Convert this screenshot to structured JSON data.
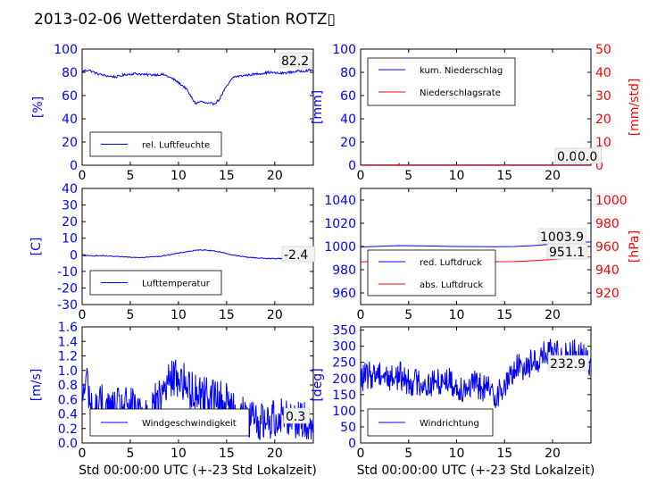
{
  "title": "2013-02-06 Wetterdaten Station ROTZ▯",
  "colors": {
    "left": "#0000ff",
    "right": "#ff0000",
    "light": "#8080ff",
    "frame": "#000000"
  },
  "chart_data": [
    {
      "id": "humidity",
      "type": "line",
      "ylabel": "[%]",
      "ylim": [
        0,
        100
      ],
      "yticks": [
        0,
        20,
        40,
        60,
        80,
        100
      ],
      "xlim": [
        0,
        24
      ],
      "xticks": [
        0,
        5,
        10,
        15,
        20
      ],
      "series": [
        {
          "name": "rel. Luftfeuchte",
          "color": "#0000ff",
          "noise": 1.0,
          "x": [
            0,
            0.7,
            1.5,
            2.5,
            3.5,
            4.5,
            5.5,
            6.5,
            7.5,
            8.5,
            9.5,
            10.2,
            10.8,
            11.3,
            11.8,
            12.3,
            13,
            13.7,
            14.2,
            14.7,
            15.2,
            15.7,
            16.5,
            17.5,
            18.5,
            19.5,
            20.5,
            21.5,
            22.5,
            24
          ],
          "y": [
            81,
            82,
            79,
            77,
            76,
            78,
            79,
            78,
            78,
            78,
            74,
            70,
            66,
            59,
            53,
            55,
            53,
            53,
            56,
            64,
            70,
            76,
            77,
            78,
            79,
            80,
            79,
            80,
            81,
            82
          ]
        }
      ],
      "annotation": "82.2"
    },
    {
      "id": "precip",
      "type": "line",
      "ylabel": "[mm]",
      "ylim": [
        0,
        100
      ],
      "yticks": [
        0,
        20,
        40,
        60,
        80,
        100
      ],
      "ylabel_right": "[mm/std]",
      "ylim_right": [
        0,
        50
      ],
      "yticks_right": [
        0,
        10,
        20,
        30,
        40,
        50
      ],
      "xlim": [
        0,
        24
      ],
      "xticks": [
        0,
        5,
        10,
        15,
        20
      ],
      "series": [
        {
          "name": "kum. Niederschlag",
          "color": "#0000ff",
          "axis": "left",
          "x": [
            0,
            24
          ],
          "y": [
            0.2,
            0.2
          ]
        },
        {
          "name": "Niederschlagsrate",
          "color": "#ff0000",
          "axis": "right",
          "x": [
            0,
            3.95,
            4.0,
            4.05,
            24
          ],
          "y": [
            0.1,
            0.1,
            0.7,
            0.1,
            0.1
          ]
        }
      ],
      "annotation": "0.0",
      "annotation_right": "0.0"
    },
    {
      "id": "temperature",
      "type": "line",
      "ylabel": "[C]",
      "ylim": [
        -30,
        40
      ],
      "yticks": [
        -30,
        -20,
        -10,
        0,
        10,
        20,
        30,
        40
      ],
      "xlim": [
        0,
        24
      ],
      "xticks": [
        0,
        5,
        10,
        15,
        20
      ],
      "series": [
        {
          "name": "Lufttemperatur",
          "color": "#0000ff",
          "noise": 0.25,
          "x": [
            0,
            2,
            4,
            6,
            8,
            9,
            10,
            11,
            12,
            12.5,
            13.5,
            14.5,
            15.5,
            16.5,
            17.5,
            18.5,
            19.5,
            20.5,
            21.5,
            22.5,
            24
          ],
          "y": [
            -0.5,
            -0.6,
            -1.2,
            -1.6,
            -1.0,
            0.0,
            1.0,
            2.0,
            2.8,
            3.0,
            2.5,
            1.5,
            0.0,
            -1.0,
            -1.6,
            -2.0,
            -2.3,
            -2.2,
            -2.3,
            -2.4,
            -2.4
          ]
        }
      ],
      "annotation": "-2.4"
    },
    {
      "id": "pressure",
      "type": "line",
      "ylim": [
        950,
        1050
      ],
      "yticks": [
        960,
        980,
        1000,
        1020,
        1040
      ],
      "ylabel_right": "[hPa]",
      "ylim_right": [
        910,
        1010
      ],
      "yticks_right": [
        920,
        940,
        960,
        980,
        1000
      ],
      "xlim": [
        0,
        24
      ],
      "xticks": [
        0,
        5,
        10,
        15,
        20
      ],
      "series": [
        {
          "name": "red. Luftdruck",
          "color": "#0000ff",
          "axis": "left",
          "x": [
            0,
            2,
            4,
            6,
            8,
            10,
            12,
            14,
            16,
            18,
            20,
            22,
            24
          ],
          "y": [
            999.5,
            1000.2,
            1000.8,
            1000.6,
            1000.3,
            1000.0,
            999.9,
            999.8,
            1000.0,
            1000.8,
            1002.0,
            1003.2,
            1003.9
          ]
        },
        {
          "name": "abs. Luftdruck",
          "color": "#ff0000",
          "axis": "right",
          "x": [
            0,
            2,
            4,
            6,
            8,
            10,
            12,
            14,
            16,
            18,
            20,
            22,
            24
          ],
          "y": [
            946.8,
            947.4,
            947.8,
            947.7,
            947.3,
            947.0,
            946.9,
            946.9,
            947.0,
            947.8,
            948.8,
            950.3,
            951.1
          ]
        }
      ],
      "annotation": "1003.9",
      "annotation_right": "951.1"
    },
    {
      "id": "windspeed",
      "type": "line",
      "ylabel": "[m/s]",
      "ylim": [
        0,
        1.6
      ],
      "yticks": [
        0.0,
        0.2,
        0.4,
        0.6,
        0.8,
        1.0,
        1.2,
        1.4,
        1.6
      ],
      "xlabel": "Std 00:00:00 UTC (+-23 Std Lokalzeit)",
      "xlim": [
        0,
        24
      ],
      "xticks": [
        0,
        5,
        10,
        15,
        20
      ],
      "series": [
        {
          "name": "Windgeschwindigkeit",
          "color": "#0000ff",
          "noise": 0.28,
          "x": [
            0,
            0.5,
            1,
            2,
            3,
            4,
            5,
            6,
            7,
            8,
            8.5,
            9,
            9.5,
            10,
            10.5,
            11,
            12,
            13,
            14,
            15,
            16,
            17,
            18,
            19,
            20,
            21,
            22,
            23,
            24
          ],
          "y": [
            0.6,
            0.9,
            0.4,
            0.55,
            0.45,
            0.5,
            0.5,
            0.45,
            0.5,
            0.6,
            0.75,
            0.85,
            0.9,
            0.9,
            0.85,
            0.75,
            0.7,
            0.65,
            0.6,
            0.55,
            0.45,
            0.35,
            0.3,
            0.3,
            0.35,
            0.4,
            0.35,
            0.3,
            0.25
          ]
        }
      ],
      "annotation": "0.3"
    },
    {
      "id": "winddir",
      "type": "line",
      "ylabel": "[deg]",
      "ylim": [
        0,
        360
      ],
      "yticks": [
        0,
        50,
        100,
        150,
        200,
        250,
        300,
        350
      ],
      "xlabel": "Std 00:00:00 UTC (+-23 Std Lokalzeit)",
      "xlim": [
        0,
        24
      ],
      "xticks": [
        0,
        5,
        10,
        15,
        20
      ],
      "series": [
        {
          "name": "Windrichtung",
          "color": "#0000ff",
          "noise": 45,
          "x": [
            0,
            1,
            2,
            3,
            4,
            5,
            6,
            7,
            8,
            9,
            10,
            11,
            12,
            13,
            14,
            15,
            16,
            17,
            18,
            19,
            20,
            21,
            22,
            23,
            24
          ],
          "y": [
            200,
            210,
            220,
            200,
            210,
            190,
            190,
            180,
            190,
            200,
            170,
            175,
            180,
            170,
            150,
            170,
            230,
            240,
            250,
            270,
            280,
            275,
            280,
            270,
            250
          ]
        }
      ],
      "annotation": "232.9"
    }
  ]
}
